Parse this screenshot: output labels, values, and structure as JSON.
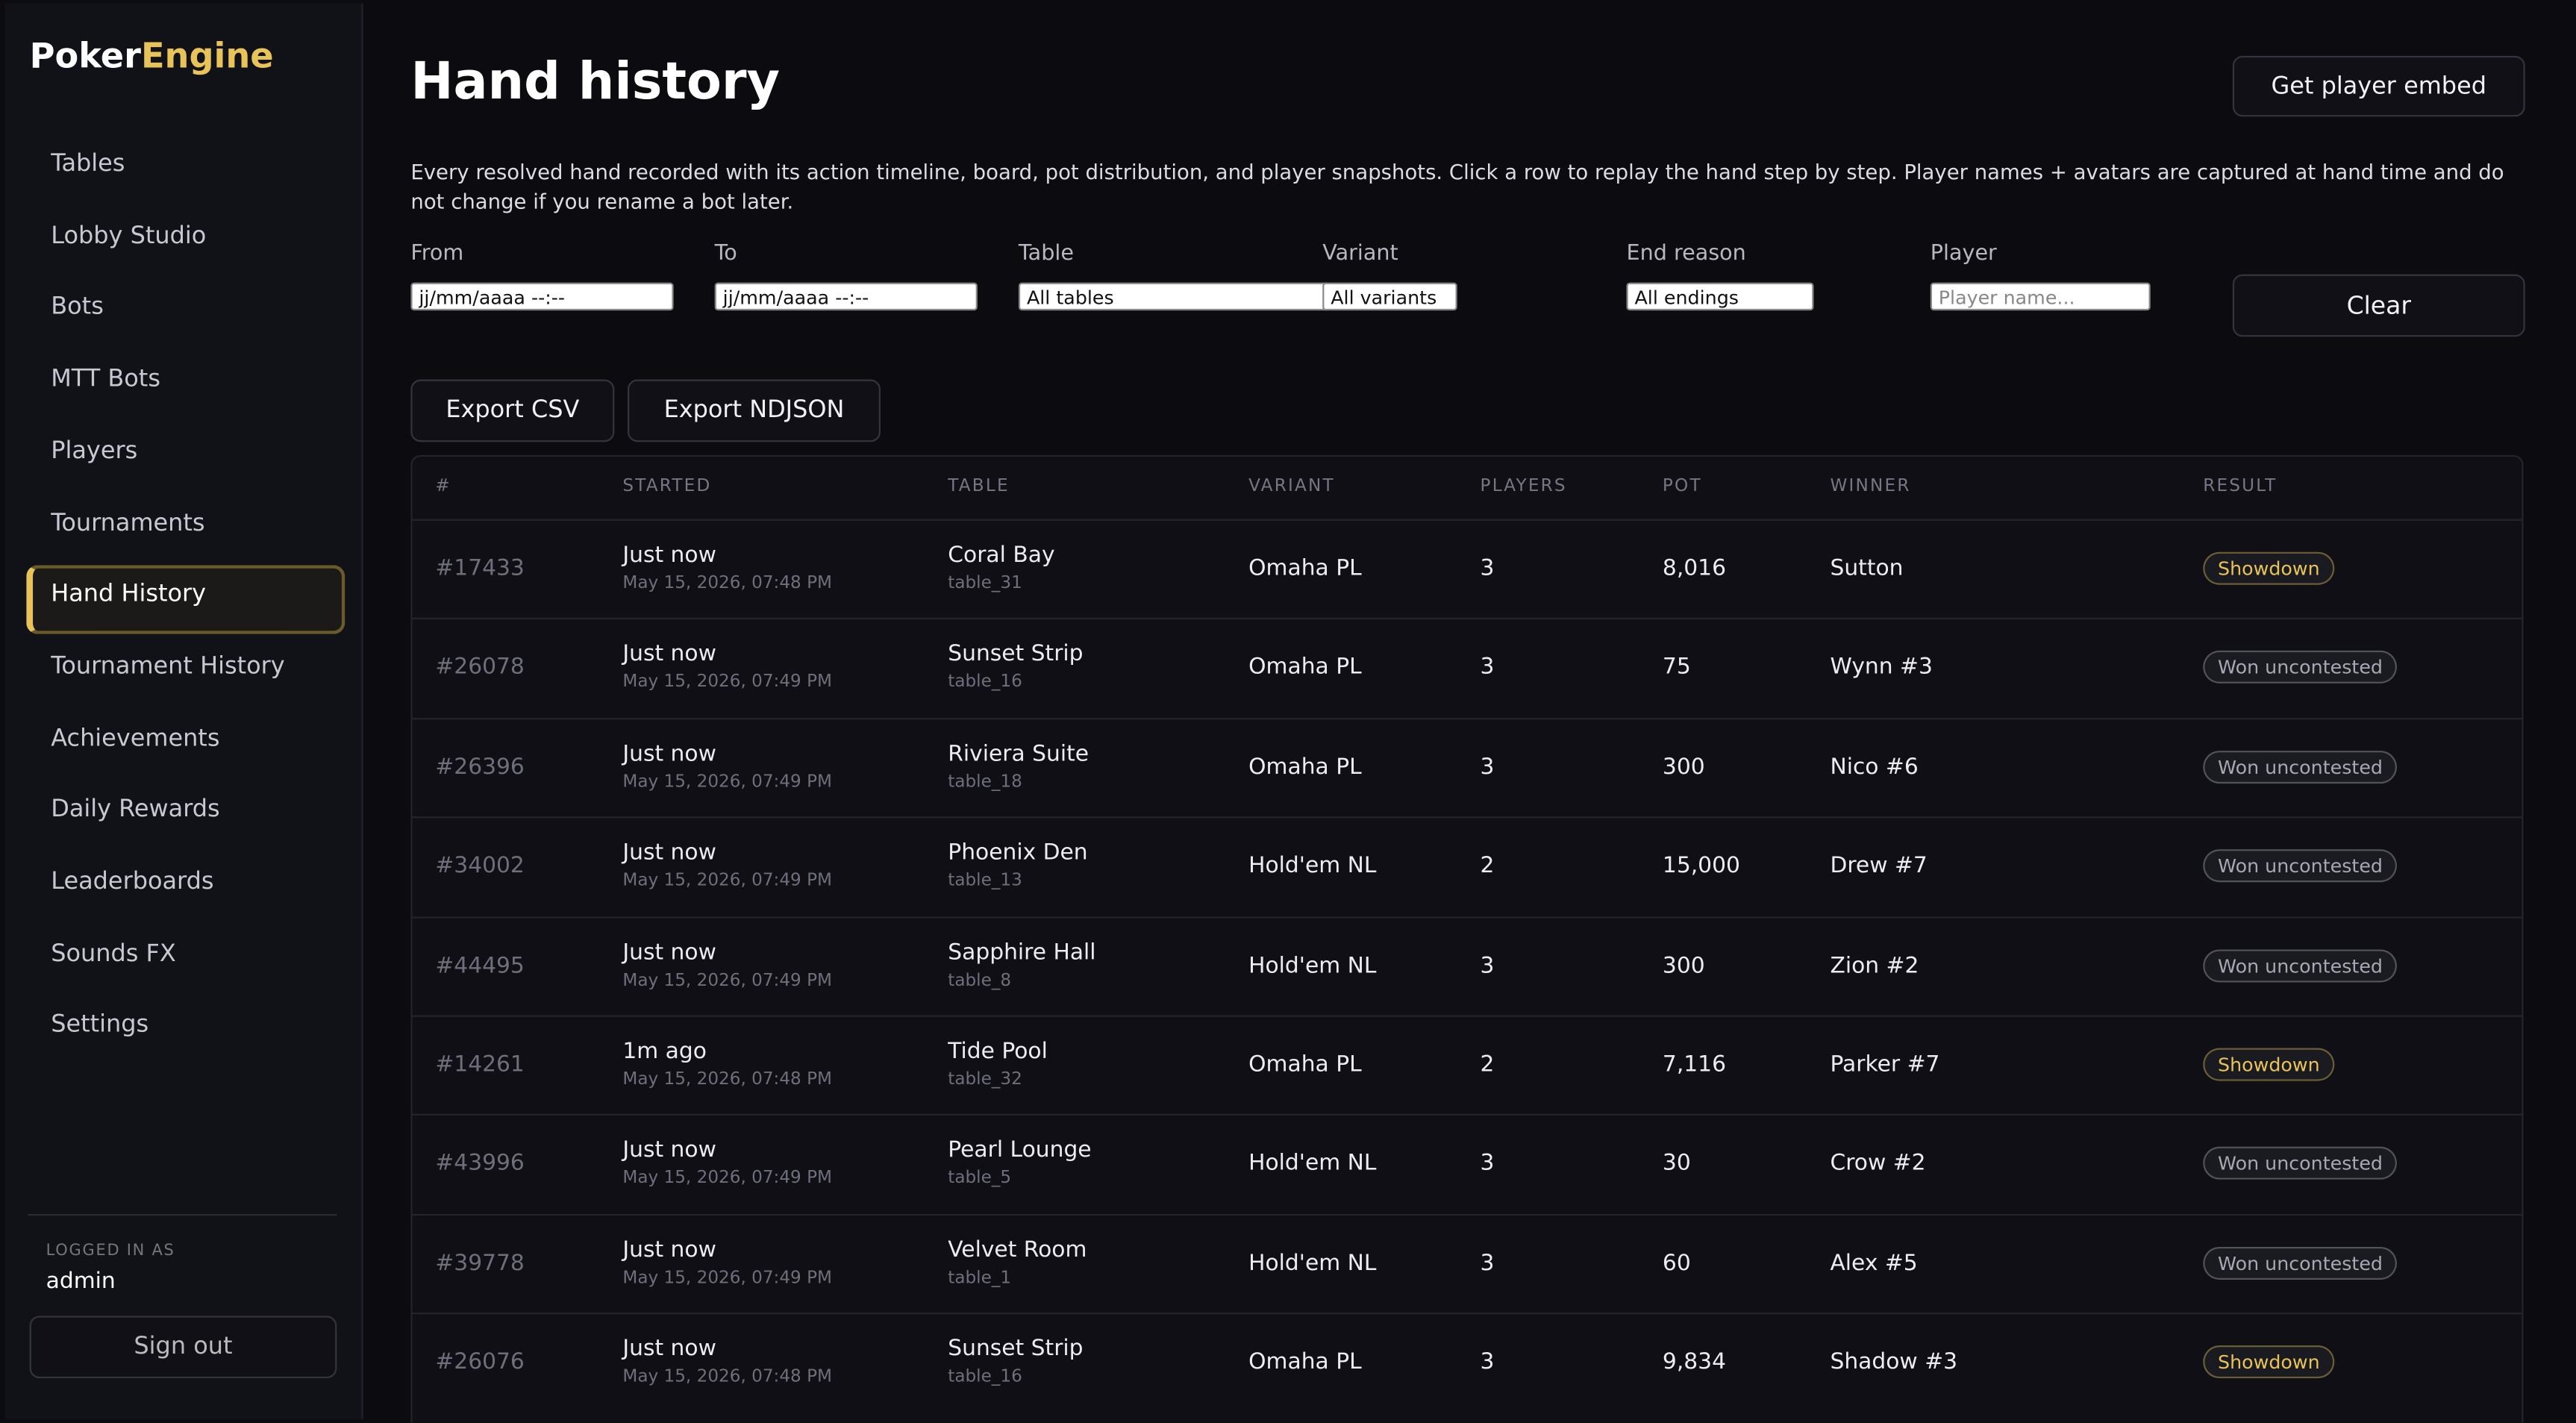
{
  "sidebar": {
    "brand": [
      "Poker",
      "Engine"
    ],
    "nav": [
      "Tables",
      "Lobby Studio",
      "Bots",
      "MTT Bots",
      "Players",
      "Tournaments",
      "Hand History",
      "Tournament History",
      "Achievements",
      "Daily Rewards",
      "Leaderboards",
      "Sounds FX",
      "Settings"
    ],
    "active": 6,
    "logged_in_label": "LOGGED IN AS",
    "user": "admin",
    "sign_out": "Sign out"
  },
  "header": {
    "title": "Hand history",
    "embed_button": "Get player embed",
    "description": "Every resolved hand recorded with its action timeline, board, pot distribution, and player snapshots. Click a row to replay the hand step by step. Player names + avatars are captured at hand time and do not change if you rename a bot later."
  },
  "filters": {
    "labels": [
      "From",
      "To",
      "Table",
      "Variant",
      "End reason",
      "Player"
    ],
    "from": "jj/mm/aaaa --:--",
    "to": "jj/mm/aaaa --:--",
    "table": "All tables",
    "variant": "All variants",
    "end_reason": "All endings",
    "player_placeholder": "Player name...",
    "clear": "Clear"
  },
  "exports": [
    "Export CSV",
    "Export NDJSON"
  ],
  "table": {
    "columns": [
      "#",
      "STARTED",
      "TABLE",
      "VARIANT",
      "PLAYERS",
      "POT",
      "WINNER",
      "RESULT"
    ],
    "rows": [
      {
        "id": "#17433",
        "started": "Just now",
        "date": "May 15, 2026, 07:48 PM",
        "table": "Coral Bay",
        "table_id": "table_31",
        "variant": "Omaha PL",
        "players": "3",
        "pot": "8,016",
        "winner": "Sutton",
        "result": "Showdown",
        "result_color": "#e8c35a"
      },
      {
        "id": "#26078",
        "started": "Just now",
        "date": "May 15, 2026, 07:49 PM",
        "table": "Sunset Strip",
        "table_id": "table_16",
        "variant": "Omaha PL",
        "players": "3",
        "pot": "75",
        "winner": "Wynn #3",
        "result": "Won uncontested",
        "result_color": "#a8a8b4"
      },
      {
        "id": "#26396",
        "started": "Just now",
        "date": "May 15, 2026, 07:49 PM",
        "table": "Riviera Suite",
        "table_id": "table_18",
        "variant": "Omaha PL",
        "players": "3",
        "pot": "300",
        "winner": "Nico #6",
        "result": "Won uncontested",
        "result_color": "#a8a8b4"
      },
      {
        "id": "#34002",
        "started": "Just now",
        "date": "May 15, 2026, 07:49 PM",
        "table": "Phoenix Den",
        "table_id": "table_13",
        "variant": "Hold'em NL",
        "players": "2",
        "pot": "15,000",
        "winner": "Drew #7",
        "result": "Won uncontested",
        "result_color": "#a8a8b4"
      },
      {
        "id": "#44495",
        "started": "Just now",
        "date": "May 15, 2026, 07:49 PM",
        "table": "Sapphire Hall",
        "table_id": "table_8",
        "variant": "Hold'em NL",
        "players": "3",
        "pot": "300",
        "winner": "Zion #2",
        "result": "Won uncontested",
        "result_color": "#a8a8b4"
      },
      {
        "id": "#14261",
        "started": "1m ago",
        "date": "May 15, 2026, 07:48 PM",
        "table": "Tide Pool",
        "table_id": "table_32",
        "variant": "Omaha PL",
        "players": "2",
        "pot": "7,116",
        "winner": "Parker #7",
        "result": "Showdown",
        "result_color": "#e8c35a"
      },
      {
        "id": "#43996",
        "started": "Just now",
        "date": "May 15, 2026, 07:49 PM",
        "table": "Pearl Lounge",
        "table_id": "table_5",
        "variant": "Hold'em NL",
        "players": "3",
        "pot": "30",
        "winner": "Crow #2",
        "result": "Won uncontested",
        "result_color": "#a8a8b4"
      },
      {
        "id": "#39778",
        "started": "Just now",
        "date": "May 15, 2026, 07:49 PM",
        "table": "Velvet Room",
        "table_id": "table_1",
        "variant": "Hold'em NL",
        "players": "3",
        "pot": "60",
        "winner": "Alex #5",
        "result": "Won uncontested",
        "result_color": "#a8a8b4"
      },
      {
        "id": "#26076",
        "started": "Just now",
        "date": "May 15, 2026, 07:48 PM",
        "table": "Sunset Strip",
        "table_id": "table_16",
        "variant": "Omaha PL",
        "players": "3",
        "pot": "9,834",
        "winner": "Shadow #3",
        "result": "Showdown",
        "result_color": "#e8c35a"
      }
    ]
  }
}
